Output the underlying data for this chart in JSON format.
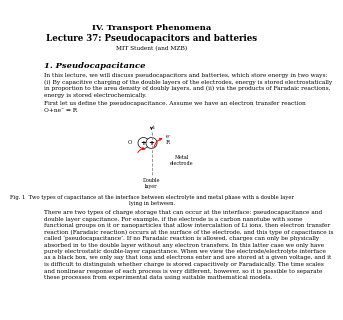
{
  "title_line1": "IV. Transport Phenomena",
  "title_line2": "Lecture 37: Pseudocapacitors and batteries",
  "author": "MIT Student (and MZB)",
  "section": "1. Pseudocapacitance",
  "body1_lines": [
    "In this lecture, we will discuss pseudocapacitors and batteries, which store energy in two ways:",
    "(i) By capacitive charging of the double layers of the electrodes, energy is stored electrostatically",
    "in proportion to the area density of doubly layers, and (ii) via the products of Faradaic reactions,",
    "energy is stored electrochemically."
  ],
  "body2_lines": [
    "First let us define the pseudocapacitance. Assume we have an electron transfer reaction",
    "O+ne⁻ ⇔ R"
  ],
  "fig_caption_lines": [
    "Fig. 1  Two types of capacitance at the interface between electrolyte and metal phase with a double layer",
    "lying in between."
  ],
  "body3_lines": [
    "There are two types of charge storage that can occur at the interface: pseudocapacitance and",
    "double layer capacitance. For example, if the electrode is a carbon nanotube with some",
    "functional groups on it or nanoparticles that allow intercalation of Li ions, then electron transfer",
    "reaction (Faradaic reaction) occurs at the surface of the electrode, and this type of capacitance is",
    "called ‘pseudocapacitance’. If no Faradaic reaction is allowed, charges can only be physically",
    "absorbed in to the double layer without any electron transfers. In this latter case we only have",
    "purely electrostatic double-layer capacitance. When we view the electrode/electrolyte interface",
    "as a black box, we only say that ions and electrons enter and are stored at a given voltage, and it",
    "is difficult to distinguish whether charge is stored capacitively or Faradaically. The time scales",
    "and nonlinear response of each process is very different, however, so it is possible to separate",
    "these processes from experimental data using suitable mathematical models."
  ],
  "background_color": "#ffffff",
  "text_color": "#000000",
  "fig_label_metal": "Metal\nelectrode",
  "fig_label_double": "Double\nlayer",
  "body_fontsize": 4.2,
  "title1_fontsize": 6.0,
  "title2_fontsize": 6.2,
  "author_fontsize": 4.2,
  "section_fontsize": 6.0,
  "caption_fontsize": 3.8
}
